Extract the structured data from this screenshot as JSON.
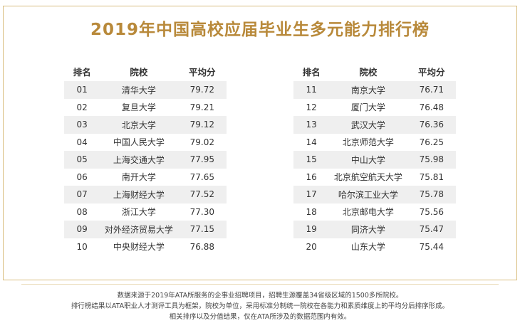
{
  "title": "2019年中国高校应届毕业生多元能力排行榜",
  "tables": [
    {
      "header": [
        "排名",
        "院校",
        "平均分"
      ],
      "rows": [
        [
          "01",
          "清华大学",
          "79.72"
        ],
        [
          "02",
          "复旦大学",
          "79.21"
        ],
        [
          "03",
          "北京大学",
          "79.12"
        ],
        [
          "04",
          "中国人民大学",
          "79.02"
        ],
        [
          "05",
          "上海交通大学",
          "77.95"
        ],
        [
          "06",
          "南开大学",
          "77.65"
        ],
        [
          "07",
          "上海财经大学",
          "77.52"
        ],
        [
          "08",
          "浙江大学",
          "77.30"
        ],
        [
          "09",
          "对外经济贸易大学",
          "77.15"
        ],
        [
          "10",
          "中央财经大学",
          "76.88"
        ]
      ]
    },
    {
      "header": [
        "排名",
        "院校",
        "平均分"
      ],
      "rows": [
        [
          "11",
          "南京大学",
          "76.71"
        ],
        [
          "12",
          "厦门大学",
          "76.48"
        ],
        [
          "13",
          "武汉大学",
          "76.36"
        ],
        [
          "14",
          "北京师范大学",
          "76.25"
        ],
        [
          "15",
          "中山大学",
          "75.98"
        ],
        [
          "16",
          "北京航空航天大学",
          "75.81"
        ],
        [
          "17",
          "哈尔滨工业大学",
          "75.78"
        ],
        [
          "18",
          "北京邮电大学",
          "75.56"
        ],
        [
          "19",
          "同济大学",
          "75.47"
        ],
        [
          "20",
          "山东大学",
          "75.44"
        ]
      ]
    }
  ],
  "notes": [
    "数据来源于2019年ATA所服务的企事业招聘项目，招聘生源覆盖34省级区域的1500多所院校。",
    "排行榜结果以ATA职业人才测评工具为框架，院校为单位，采用标准分制统一院校在各能力和素质维度上的平均分后排序形成。",
    "相关排序以及分值结果，仅在ATA所涉及的数据范围内有效。"
  ]
}
